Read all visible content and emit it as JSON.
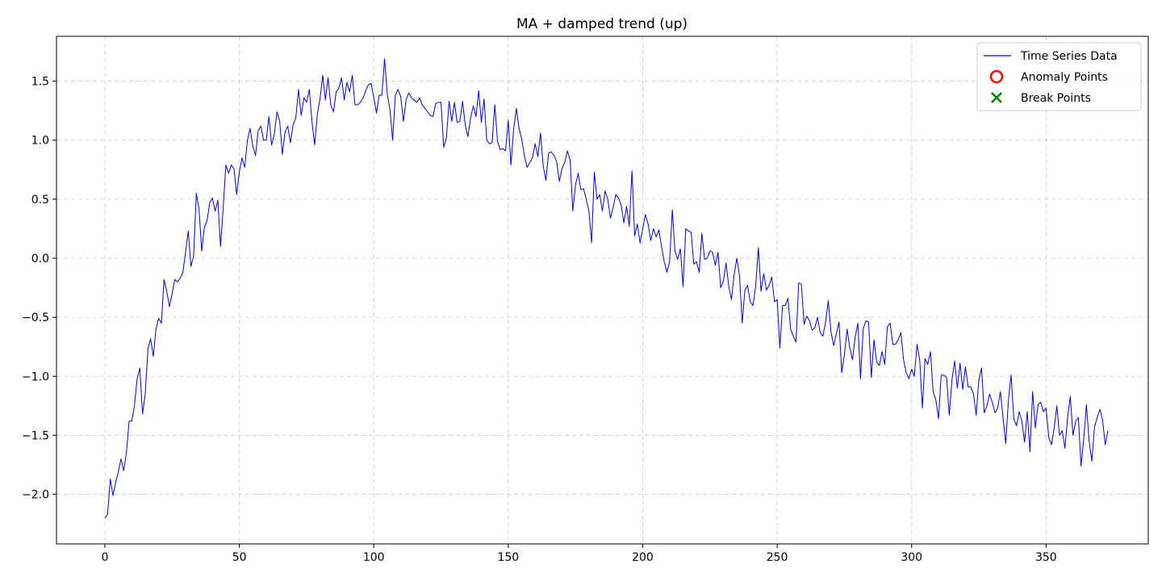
{
  "chart_data": {
    "type": "line",
    "title": "MA + damped trend (up)",
    "xlabel": "",
    "ylabel": "",
    "xlim": [
      -18,
      388
    ],
    "ylim": [
      -2.42,
      1.88
    ],
    "x_ticks": [
      0,
      50,
      100,
      150,
      200,
      250,
      300,
      350
    ],
    "x_tick_labels": [
      "0",
      "50",
      "100",
      "150",
      "200",
      "250",
      "300",
      "350"
    ],
    "y_ticks": [
      -2.0,
      -1.5,
      -1.0,
      -0.5,
      0.0,
      0.5,
      1.0,
      1.5
    ],
    "y_tick_labels": [
      "−2.0",
      "−1.5",
      "−1.0",
      "−0.5",
      "0.0",
      "0.5",
      "1.0",
      "1.5"
    ],
    "grid": true,
    "legend_position": "top-right",
    "legend": [
      {
        "label": "Time Series Data",
        "marker": "line",
        "color": "#0000ff"
      },
      {
        "label": "Anomaly Points",
        "marker": "circle",
        "color": "#ff0000"
      },
      {
        "label": "Break Points",
        "marker": "x",
        "color": "#008000"
      }
    ],
    "series": [
      {
        "name": "Time Series Data",
        "color": "#0000ff",
        "x_start": 0,
        "x_step": 1,
        "values": [
          -2.2,
          -2.17,
          -1.87,
          -2.01,
          -1.9,
          -1.81,
          -1.7,
          -1.8,
          -1.65,
          -1.38,
          -1.38,
          -1.25,
          -1.02,
          -0.93,
          -1.32,
          -1.15,
          -0.77,
          -0.68,
          -0.83,
          -0.6,
          -0.51,
          -0.55,
          -0.18,
          -0.28,
          -0.41,
          -0.3,
          -0.18,
          -0.2,
          -0.17,
          -0.12,
          0.05,
          0.23,
          -0.07,
          0.02,
          0.55,
          0.42,
          0.06,
          0.26,
          0.32,
          0.47,
          0.51,
          0.4,
          0.49,
          0.1,
          0.43,
          0.79,
          0.72,
          0.79,
          0.76,
          0.54,
          0.73,
          0.85,
          0.77,
          1.0,
          1.1,
          0.95,
          0.87,
          1.08,
          1.12,
          1.0,
          1.0,
          1.2,
          0.96,
          1.05,
          1.24,
          1.16,
          0.88,
          1.07,
          1.12,
          0.98,
          1.13,
          1.19,
          1.43,
          1.21,
          1.36,
          1.32,
          1.43,
          1.16,
          0.96,
          1.22,
          1.35,
          1.55,
          1.34,
          1.53,
          1.3,
          1.24,
          1.41,
          1.44,
          1.53,
          1.34,
          1.49,
          1.41,
          1.55,
          1.3,
          1.3,
          1.32,
          1.36,
          1.42,
          1.47,
          1.48,
          1.36,
          1.23,
          1.38,
          1.38,
          1.69,
          1.39,
          1.26,
          1.0,
          1.38,
          1.43,
          1.37,
          1.16,
          1.34,
          1.4,
          1.36,
          1.34,
          1.32,
          1.36,
          1.3,
          1.27,
          1.24,
          1.21,
          1.2,
          1.31,
          1.32,
          1.32,
          0.94,
          1.02,
          1.33,
          1.16,
          1.32,
          1.15,
          1.16,
          1.33,
          1.13,
          1.03,
          1.19,
          1.29,
          1.2,
          1.42,
          1.15,
          1.35,
          1.0,
          0.97,
          0.98,
          1.3,
          0.99,
          0.92,
          0.93,
          0.91,
          1.17,
          0.79,
          1.09,
          1.27,
          1.1,
          1.01,
          0.87,
          0.77,
          0.81,
          0.85,
          0.97,
          0.86,
          1.06,
          0.78,
          0.66,
          0.89,
          0.9,
          0.87,
          0.82,
          0.65,
          0.76,
          0.81,
          0.91,
          0.83,
          0.4,
          0.62,
          0.72,
          0.58,
          0.59,
          0.5,
          0.4,
          0.13,
          0.73,
          0.5,
          0.54,
          0.4,
          0.57,
          0.5,
          0.34,
          0.43,
          0.54,
          0.51,
          0.45,
          0.3,
          0.44,
          0.27,
          0.74,
          0.19,
          0.29,
          0.13,
          0.25,
          0.37,
          0.29,
          0.15,
          0.25,
          0.18,
          0.24,
          0.1,
          -0.03,
          -0.12,
          -0.03,
          0.41,
          0.06,
          -0.01,
          0.08,
          -0.24,
          0.25,
          0.23,
          0.22,
          -0.05,
          -0.03,
          -0.12,
          0.21,
          -0.01,
          0.0,
          0.06,
          0.05,
          -0.06,
          0.05,
          -0.25,
          -0.19,
          -0.04,
          -0.24,
          -0.35,
          -0.14,
          0.0,
          -0.15,
          -0.55,
          -0.27,
          -0.23,
          -0.37,
          -0.4,
          -0.24,
          0.09,
          -0.28,
          -0.13,
          -0.27,
          -0.23,
          -0.16,
          -0.37,
          -0.35,
          -0.76,
          -0.4,
          -0.4,
          -0.34,
          -0.6,
          -0.66,
          -0.71,
          -0.21,
          -0.22,
          -0.56,
          -0.49,
          -0.53,
          -0.61,
          -0.59,
          -0.5,
          -0.63,
          -0.66,
          -0.54,
          -0.36,
          -0.62,
          -0.74,
          -0.64,
          -0.54,
          -0.97,
          -0.82,
          -0.6,
          -0.76,
          -0.86,
          -0.67,
          -0.55,
          -1.02,
          -0.6,
          -0.53,
          -0.54,
          -1.01,
          -0.69,
          -0.88,
          -0.91,
          -0.79,
          -0.9,
          -0.58,
          -0.55,
          -0.73,
          -0.73,
          -0.69,
          -0.63,
          -0.86,
          -0.97,
          -1.02,
          -0.94,
          -1.0,
          -0.73,
          -0.86,
          -1.27,
          -0.85,
          -0.9,
          -0.79,
          -1.13,
          -1.2,
          -1.36,
          -0.99,
          -0.99,
          -1.01,
          -1.33,
          -1.03,
          -0.87,
          -1.1,
          -0.89,
          -1.11,
          -0.92,
          -1.09,
          -1.09,
          -1.15,
          -1.33,
          -1.03,
          -0.93,
          -1.31,
          -1.25,
          -1.15,
          -1.22,
          -1.31,
          -1.27,
          -1.13,
          -1.35,
          -1.57,
          -1.2,
          -0.99,
          -1.36,
          -1.42,
          -1.3,
          -1.38,
          -1.56,
          -1.3,
          -1.64,
          -1.13,
          -1.44,
          -1.24,
          -1.22,
          -1.3,
          -1.27,
          -1.52,
          -1.58,
          -1.44,
          -1.25,
          -1.5,
          -1.46,
          -1.61,
          -1.35,
          -1.17,
          -1.5,
          -1.38,
          -1.35,
          -1.76,
          -1.53,
          -1.24,
          -1.55,
          -1.72,
          -1.43,
          -1.35,
          -1.28,
          -1.37,
          -1.58,
          -1.46
        ]
      }
    ]
  }
}
